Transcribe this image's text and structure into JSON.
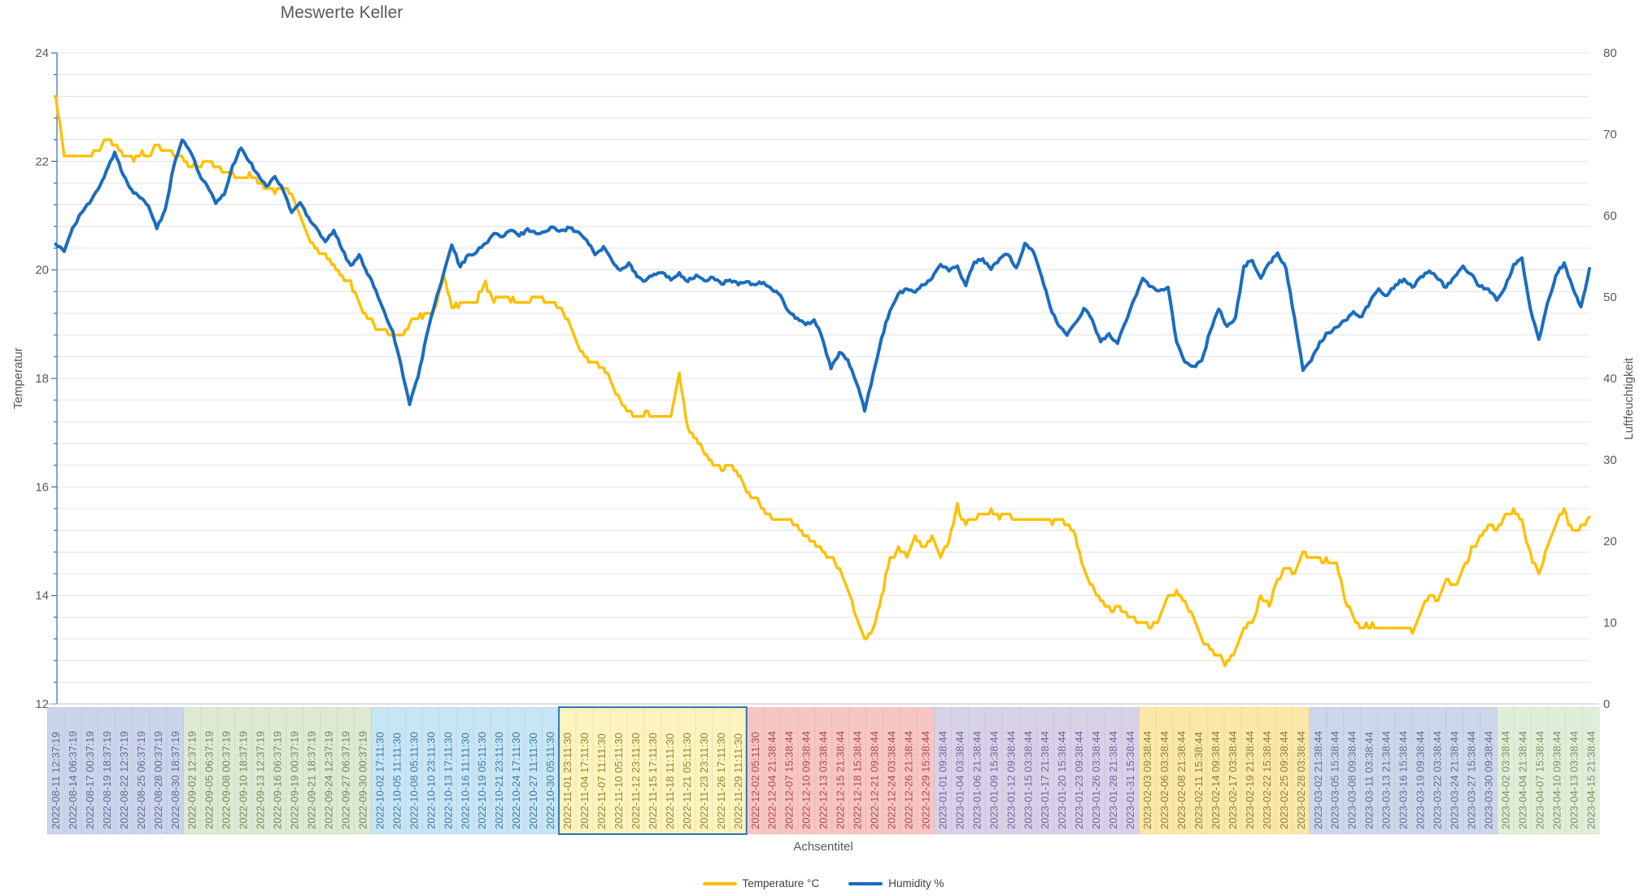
{
  "title": "Meswerte Keller",
  "colors": {
    "temperature_line": "#FFC000",
    "humidity_line": "#1B6DBE",
    "gridline": "#E3E3E3",
    "axis_line_left": "#4472C4",
    "axis_line_bottom": "#BFBFBF",
    "text": "#595959",
    "selection_border": "#2E75B6"
  },
  "legend": [
    {
      "label": "Temperature °C",
      "color": "#FFC000"
    },
    {
      "label": "Humidity %",
      "color": "#1B6DBE"
    }
  ],
  "x_axis": {
    "title": "Achsentitel",
    "groups": [
      {
        "count": 8,
        "fill": "#CBD4EA",
        "text_color": "#5E6E90",
        "selected": false
      },
      {
        "count": 11,
        "fill": "#DDE9D2",
        "text_color": "#75885A",
        "selected": false
      },
      {
        "count": 11,
        "fill": "#C8E5F4",
        "text_color": "#3D7BA6",
        "selected": false
      },
      {
        "count": 11,
        "fill": "#FCF3BF",
        "text_color": "#93872F",
        "selected": true
      },
      {
        "count": 11,
        "fill": "#F6C6C5",
        "text_color": "#AE4A4E",
        "selected": false
      },
      {
        "count": 12,
        "fill": "#D8D2E8",
        "text_color": "#73659C",
        "selected": false
      },
      {
        "count": 10,
        "fill": "#FAE8A7",
        "text_color": "#8E7E44",
        "selected": false
      },
      {
        "count": 11,
        "fill": "#CDD6EA",
        "text_color": "#5E7095",
        "selected": false
      },
      {
        "count": 6,
        "fill": "#E0EDD9",
        "text_color": "#7A9166",
        "selected": false
      }
    ]
  },
  "chart_data": {
    "type": "line",
    "title": "Meswerte Keller",
    "xlabel": "Achsentitel",
    "legend_position": "bottom",
    "grid": "horizontal-minor",
    "y_left": {
      "title": "Temperatur",
      "min": 12,
      "max": 24,
      "tick_step": 2,
      "gridline_step": 0.4,
      "tick_labels": [
        "24",
        "22",
        "20",
        "18",
        "16",
        "14",
        "12"
      ]
    },
    "y_right": {
      "title": "Luftfeuchtigkeit",
      "min": 0,
      "max": 80,
      "tick_step": 10,
      "tick_labels": [
        "80",
        "70",
        "60",
        "50",
        "40",
        "30",
        "20",
        "10",
        "0"
      ]
    },
    "samples_per_category": 2,
    "categories": [
      "2022-08-11 12:37:19",
      "2022-08-14 06:37:19",
      "2022-08-17 00:37:19",
      "2022-08-19 18:37:19",
      "2022-08-22 12:37:19",
      "2022-08-25 06:37:19",
      "2022-08-28 00:37:19",
      "2022-08-30 18:37:19",
      "2022-09-02 12:37:19",
      "2022-09-05 06:37:19",
      "2022-09-08 00:37:19",
      "2022-09-10 18:37:19",
      "2022-09-13 12:37:19",
      "2022-09-16 06:37:19",
      "2022-09-19 00:37:19",
      "2022-09-21 18:37:19",
      "2022-09-24 12:37:19",
      "2022-09-27 06:37:19",
      "2022-09-30 00:37:19",
      "2022-10-02 17:11:30",
      "2022-10-05 11:11:30",
      "2022-10-08 05:11:30",
      "2022-10-10 23:11:30",
      "2022-10-13 17:11:30",
      "2022-10-16 11:11:30",
      "2022-10-19 05:11:30",
      "2022-10-21 23:11:30",
      "2022-10-24 17:11:30",
      "2022-10-27 11:11:30",
      "2022-10-30 05:11:30",
      "2022-11-01 23:11:30",
      "2022-11-04 17:11:30",
      "2022-11-07 11:11:30",
      "2022-11-10 05:11:30",
      "2022-11-12 23:11:30",
      "2022-11-15 17:11:30",
      "2022-11-18 11:11:30",
      "2022-11-21 05:11:30",
      "2022-11-23 23:11:30",
      "2022-11-26 17:11:30",
      "2022-11-29 11:11:30",
      "2022-12-02 05:11:30",
      "2022-12-04 21:38:44",
      "2022-12-07 15:38:44",
      "2022-12-10 09:38:44",
      "2022-12-13 03:38:44",
      "2022-12-15 21:38:44",
      "2022-12-18 15:38:44",
      "2022-12-21 09:38:44",
      "2022-12-24 03:38:44",
      "2022-12-26 21:38:44",
      "2022-12-29 15:38:44",
      "2023-01-01 09:38:44",
      "2023-01-04 03:38:44",
      "2023-01-06 21:38:44",
      "2023-01-09 15:38:44",
      "2023-01-12 09:38:44",
      "2023-01-15 03:38:44",
      "2023-01-17 21:38:44",
      "2023-01-20 15:38:44",
      "2023-01-23 09:38:44",
      "2023-01-26 03:38:44",
      "2023-01-28 21:38:44",
      "2023-01-31 15:38:44",
      "2023-02-03 09:38:44",
      "2023-02-06 03:38:44",
      "2023-02-08 21:38:44",
      "2023-02-11 15:38:44",
      "2023-02-14 09:38:44",
      "2023-02-17 03:38:44",
      "2023-02-19 21:38:44",
      "2023-02-22 15:38:44",
      "2023-02-25 09:38:44",
      "2023-02-28 03:38:44",
      "2023-03-02 21:38:44",
      "2023-03-05 15:38:44",
      "2023-03-08 09:38:44",
      "2023-03-11 03:38:44",
      "2023-03-13 21:38:44",
      "2023-03-16 15:38:44",
      "2023-03-19 09:38:44",
      "2023-03-22 03:38:44",
      "2023-03-24 21:38:44",
      "2023-03-27 15:38:44",
      "2023-03-30 09:38:44",
      "2023-04-02 03:38:44",
      "2023-04-04 21:38:44",
      "2023-04-07 15:38:44",
      "2023-04-10 09:38:44",
      "2023-04-13 03:38:44",
      "2023-04-15 21:38:44"
    ],
    "series": [
      {
        "name": "Temperature °C",
        "axis": "left",
        "color": "#FFC000",
        "values": [
          23.2,
          22.1,
          22.05,
          22.15,
          22.1,
          22.2,
          22.45,
          22.3,
          22.15,
          22.05,
          22.15,
          22.1,
          22.3,
          22.2,
          22.15,
          22.05,
          21.9,
          21.95,
          22.0,
          21.9,
          21.8,
          21.75,
          21.7,
          21.75,
          21.65,
          21.5,
          21.45,
          21.5,
          21.4,
          21.0,
          20.6,
          20.35,
          20.3,
          20.1,
          19.85,
          19.75,
          19.4,
          19.1,
          18.95,
          18.9,
          18.8,
          18.75,
          19.0,
          19.15,
          19.2,
          19.25,
          19.9,
          19.3,
          19.35,
          19.4,
          19.45,
          19.75,
          19.45,
          19.5,
          19.45,
          19.4,
          19.45,
          19.5,
          19.45,
          19.4,
          19.3,
          19.0,
          18.6,
          18.35,
          18.3,
          18.2,
          17.9,
          17.6,
          17.35,
          17.3,
          17.35,
          17.3,
          17.3,
          17.3,
          18.1,
          17.05,
          16.9,
          16.65,
          16.45,
          16.3,
          16.45,
          16.2,
          15.95,
          15.8,
          15.6,
          15.45,
          15.4,
          15.4,
          15.25,
          15.1,
          15.0,
          14.8,
          14.7,
          14.5,
          14.1,
          13.6,
          13.2,
          13.35,
          14.0,
          14.65,
          14.85,
          14.7,
          15.05,
          14.85,
          15.1,
          14.7,
          15.0,
          15.65,
          15.3,
          15.45,
          15.5,
          15.55,
          15.45,
          15.5,
          15.4,
          15.45,
          15.35,
          15.4,
          15.35,
          15.4,
          15.3,
          15.1,
          14.5,
          14.15,
          13.9,
          13.75,
          13.8,
          13.65,
          13.55,
          13.5,
          13.45,
          13.6,
          14.0,
          14.05,
          13.9,
          13.6,
          13.2,
          13.0,
          12.85,
          12.75,
          13.0,
          13.35,
          13.5,
          14.0,
          13.8,
          14.3,
          14.5,
          14.45,
          14.8,
          14.65,
          14.7,
          14.6,
          14.55,
          13.95,
          13.6,
          13.4,
          13.45,
          13.4,
          13.45,
          13.35,
          13.45,
          13.3,
          13.7,
          14.0,
          13.85,
          14.3,
          14.15,
          14.5,
          14.85,
          15.05,
          15.3,
          15.2,
          15.5,
          15.55,
          15.35,
          14.75,
          14.4,
          14.9,
          15.3,
          15.55,
          15.15,
          15.3,
          15.45
        ]
      },
      {
        "name": "Humidity %",
        "axis": "right",
        "color": "#1B6DBE",
        "values": [
          56.5,
          55.6,
          58.5,
          60.3,
          61.5,
          63.2,
          65.5,
          67.8,
          65.0,
          63.2,
          62.2,
          61.2,
          58.4,
          60.8,
          66.0,
          69.3,
          67.8,
          65.2,
          63.6,
          61.5,
          62.6,
          66.2,
          68.3,
          66.6,
          65.1,
          63.6,
          64.8,
          63.1,
          60.4,
          61.6,
          59.8,
          58.4,
          56.8,
          58.2,
          55.8,
          53.9,
          55.2,
          52.8,
          50.8,
          48.2,
          45.8,
          41.5,
          36.8,
          40.2,
          45.2,
          49.2,
          52.8,
          56.4,
          53.7,
          55.2,
          55.6,
          56.6,
          57.8,
          57.4,
          58.2,
          57.5,
          58.4,
          57.8,
          58.0,
          58.6,
          58.2,
          58.5,
          58.0,
          57.0,
          55.2,
          56.2,
          54.5,
          53.3,
          54.2,
          52.5,
          52.0,
          52.8,
          53.0,
          52.1,
          53.0,
          51.9,
          52.7,
          52.0,
          52.4,
          51.6,
          52.1,
          51.5,
          51.9,
          51.5,
          51.8,
          50.9,
          50.2,
          48.2,
          47.4,
          46.6,
          47.2,
          44.8,
          41.2,
          43.2,
          42.3,
          39.5,
          36.0,
          40.5,
          45.0,
          48.3,
          50.4,
          51.0,
          50.6,
          51.5,
          52.3,
          54.0,
          53.2,
          53.8,
          51.4,
          54.3,
          54.7,
          53.4,
          54.7,
          55.2,
          53.6,
          56.6,
          55.6,
          52.5,
          48.8,
          46.5,
          45.3,
          46.8,
          48.6,
          47.2,
          44.5,
          45.5,
          44.3,
          47.0,
          49.8,
          52.3,
          51.3,
          50.8,
          51.2,
          44.5,
          42.0,
          41.5,
          42.2,
          45.8,
          48.5,
          46.4,
          47.5,
          53.8,
          54.5,
          52.3,
          54.2,
          55.4,
          53.5,
          47.5,
          41.0,
          42.2,
          44.5,
          45.6,
          46.3,
          47.1,
          48.2,
          47.6,
          49.5,
          51.0,
          50.2,
          51.5,
          52.2,
          51.2,
          52.5,
          53.2,
          52.2,
          51.2,
          52.5,
          53.8,
          52.8,
          51.3,
          51.0,
          49.6,
          51.2,
          54.0,
          54.8,
          48.5,
          44.8,
          49.2,
          52.6,
          54.2,
          51.2,
          48.8,
          53.5
        ]
      }
    ]
  }
}
